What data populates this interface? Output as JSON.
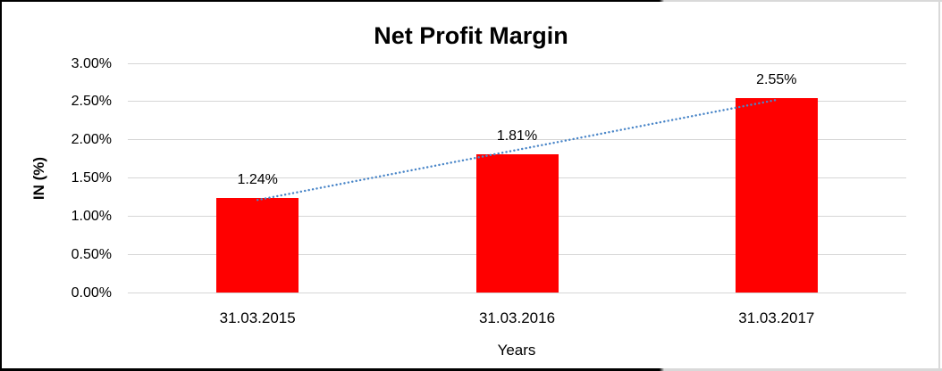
{
  "chart_data": {
    "type": "bar",
    "title": "Net Profit Margin",
    "xlabel": "Years",
    "ylabel": "IN (%)",
    "categories": [
      "31.03.2015",
      "31.03.2016",
      "31.03.2017"
    ],
    "values": [
      1.24,
      1.81,
      2.55
    ],
    "data_labels": [
      "1.24%",
      "1.81%",
      "2.55%"
    ],
    "ylim": [
      0,
      3
    ],
    "ytick_step": 0.5,
    "ytick_labels": [
      "0.00%",
      "0.50%",
      "1.00%",
      "1.50%",
      "2.00%",
      "2.50%",
      "3.00%"
    ],
    "grid": true,
    "legend": "none",
    "bar_color": "#ff0000",
    "gridline_color": "#d6d6d6",
    "trendline": {
      "type": "linear",
      "style": "dotted",
      "color": "#4a86c8"
    }
  }
}
